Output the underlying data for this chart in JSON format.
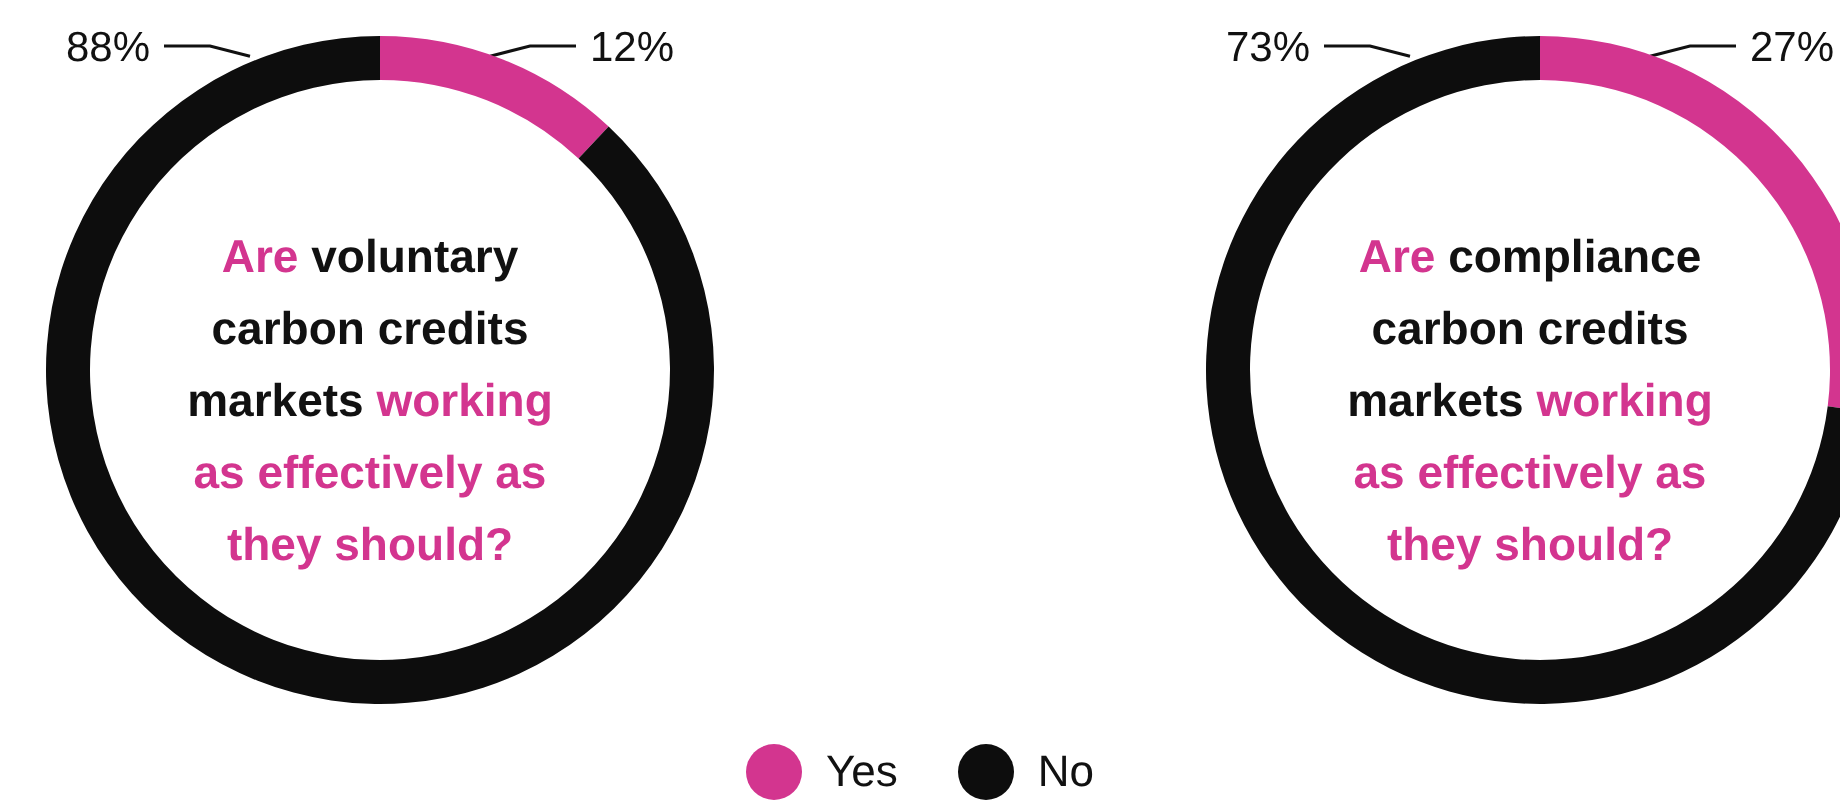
{
  "chart_data": [
    {
      "type": "donut",
      "title": "Are voluntary carbon credits markets working as effectively as they should?",
      "categories": [
        "Yes",
        "No"
      ],
      "values": [
        12,
        88
      ],
      "value_labels": [
        "12%",
        "88%"
      ],
      "colors": [
        "#d3358f",
        "#0d0d0d"
      ],
      "legend": "bottom"
    },
    {
      "type": "donut",
      "title": "Are compliance carbon credits markets working as effectively as they should?",
      "categories": [
        null,
        null
      ],
      "values": [
        27,
        73
      ],
      "value_labels": [
        "27%",
        "73%"
      ],
      "colors": [
        "#d3358f",
        "#0d0d0d"
      ]
    }
  ]
}
